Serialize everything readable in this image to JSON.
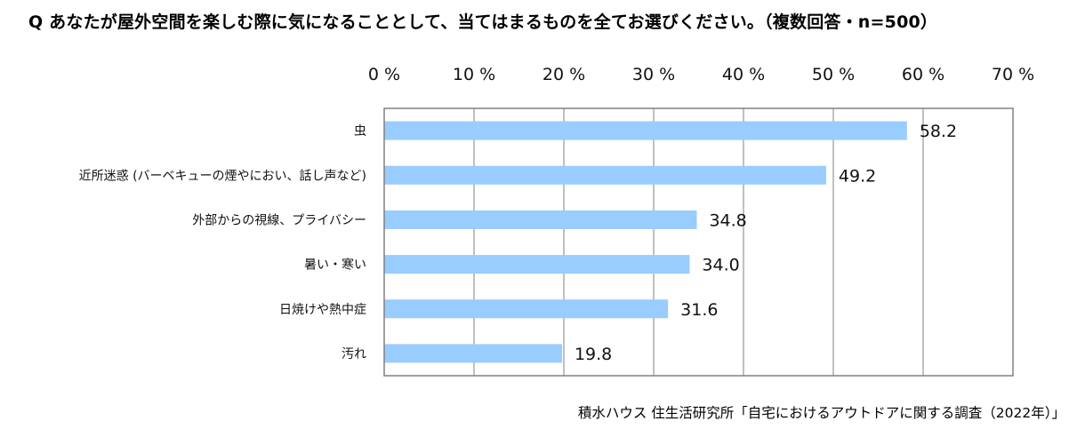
{
  "chart_data": {
    "type": "bar",
    "orientation": "horizontal",
    "title": "Q あなたが屋外空間を楽しむ際に気になることとして、当てはまるものを全てお選びください。（複数回答・n=500）",
    "categories": [
      "虫",
      "近所迷惑 (バーベキューの煙やにおい、話し声など)",
      "外部からの視線、プライバシー",
      "暑い・寒い",
      "日焼けや熱中症",
      "汚れ"
    ],
    "values": [
      58.2,
      49.2,
      34.8,
      34.0,
      31.6,
      19.8
    ],
    "value_labels": [
      "58.2",
      "49.2",
      "34.8",
      "34.0",
      "31.6",
      "19.8"
    ],
    "xlim": [
      0,
      70
    ],
    "ticks": [
      0,
      10,
      20,
      30,
      40,
      50,
      60,
      70
    ],
    "tick_labels": [
      "0 %",
      "10 %",
      "20 %",
      "30 %",
      "40 %",
      "50 %",
      "60 %",
      "70 %"
    ],
    "xlabel": "",
    "ylabel": "",
    "grid": true,
    "axis_position": "top",
    "bar_color": "#99CCFF",
    "source": "積水ハウス 住生活研究所「自宅におけるアウトドアに関する調査（2022年）」"
  }
}
